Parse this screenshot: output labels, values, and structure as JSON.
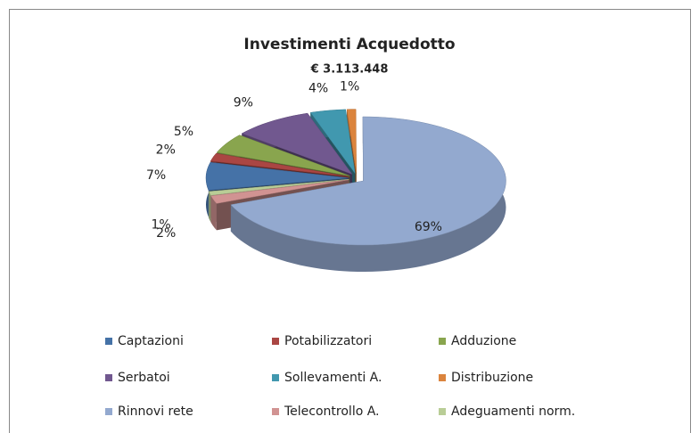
{
  "chart_data": {
    "type": "pie",
    "title": "Investimenti Acquedotto",
    "subtitle": "€ 3.113.448",
    "categories": [
      "Captazioni",
      "Potabilizzatori",
      "Adduzione",
      "Serbatoi",
      "Sollevamenti A.",
      "Distribuzione",
      "Rinnovi rete",
      "Telecontrollo A.",
      "Adeguamenti norm."
    ],
    "values": [
      7,
      2,
      5,
      9,
      4,
      1,
      69,
      2,
      1
    ],
    "value_labels": [
      "7%",
      "2%",
      "5%",
      "9%",
      "4%",
      "1%",
      "69%",
      "2%",
      "1%"
    ],
    "colors": [
      "#4572a7",
      "#aa4643",
      "#89a54e",
      "#71588f",
      "#4198af",
      "#db843d",
      "#93a9cf",
      "#d19392",
      "#b9cd96"
    ],
    "legend": "bottom"
  }
}
